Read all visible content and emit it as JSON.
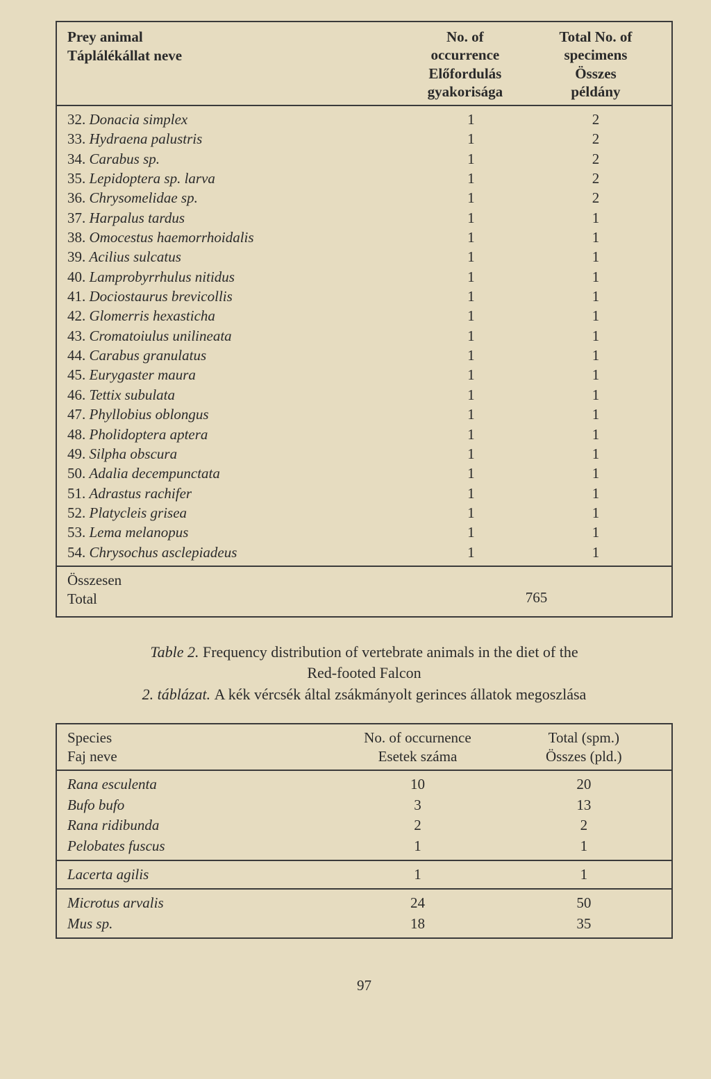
{
  "table1": {
    "header": {
      "left_line1": "Prey animal",
      "left_line2": "Táplálékállat neve",
      "col1_line1": "No. of",
      "col1_line2": "occurrence",
      "col1_line3": "Előfordulás",
      "col1_line4": "gyakorisága",
      "col2_line1": "Total No. of",
      "col2_line2": "specimens",
      "col2_line3": "Összes",
      "col2_line4": "példány"
    },
    "rows": [
      {
        "num": "32.",
        "name": "Donacia simplex",
        "v1": "1",
        "v2": "2"
      },
      {
        "num": "33.",
        "name": "Hydraena palustris",
        "v1": "1",
        "v2": "2"
      },
      {
        "num": "34.",
        "name": "Carabus sp.",
        "v1": "1",
        "v2": "2"
      },
      {
        "num": "35.",
        "name": "Lepidoptera sp. larva",
        "v1": "1",
        "v2": "2"
      },
      {
        "num": "36.",
        "name": "Chrysomelidae sp.",
        "v1": "1",
        "v2": "2"
      },
      {
        "num": "37.",
        "name": "Harpalus tardus",
        "v1": "1",
        "v2": "1"
      },
      {
        "num": "38.",
        "name": "Omocestus haemorrhoidalis",
        "v1": "1",
        "v2": "1"
      },
      {
        "num": "39.",
        "name": "Acilius sulcatus",
        "v1": "1",
        "v2": "1"
      },
      {
        "num": "40.",
        "name": "Lamprobyrrhulus nitidus",
        "v1": "1",
        "v2": "1"
      },
      {
        "num": "41.",
        "name": "Dociostaurus brevicollis",
        "v1": "1",
        "v2": "1"
      },
      {
        "num": "42.",
        "name": "Glomerris hexasticha",
        "v1": "1",
        "v2": "1"
      },
      {
        "num": "43.",
        "name": "Cromatoiulus unilineata",
        "v1": "1",
        "v2": "1"
      },
      {
        "num": "44.",
        "name": "Carabus granulatus",
        "v1": "1",
        "v2": "1"
      },
      {
        "num": "45.",
        "name": "Eurygaster maura",
        "v1": "1",
        "v2": "1"
      },
      {
        "num": "46.",
        "name": "Tettix subulata",
        "v1": "1",
        "v2": "1"
      },
      {
        "num": "47.",
        "name": "Phyllobius oblongus",
        "v1": "1",
        "v2": "1"
      },
      {
        "num": "48.",
        "name": "Pholidoptera aptera",
        "v1": "1",
        "v2": "1"
      },
      {
        "num": "49.",
        "name": "Silpha obscura",
        "v1": "1",
        "v2": "1"
      },
      {
        "num": "50.",
        "name": "Adalia decempunctata",
        "v1": "1",
        "v2": "1"
      },
      {
        "num": "51.",
        "name": "Adrastus rachifer",
        "v1": "1",
        "v2": "1"
      },
      {
        "num": "52.",
        "name": "Platycleis grisea",
        "v1": "1",
        "v2": "1"
      },
      {
        "num": "53.",
        "name": "Lema melanopus",
        "v1": "1",
        "v2": "1"
      },
      {
        "num": "54.",
        "name": "Chrysochus asclepiadeus",
        "v1": "1",
        "v2": "1"
      }
    ],
    "footer": {
      "line1": "Összesen",
      "line2": "Total",
      "total": "765"
    }
  },
  "caption": {
    "prefix": "Table 2. ",
    "title_line1": "Frequency distribution of vertebrate animals in the diet of the",
    "title_line2": "Red-footed Falcon",
    "num": "2. táblázat. ",
    "subtitle": "A kék vércsék által zsákmányolt gerinces állatok megoszlása"
  },
  "table2": {
    "header": {
      "left_line1": "Species",
      "left_line2": "Faj neve",
      "col1_line1": "No. of occurnence",
      "col1_line2": "Esetek száma",
      "col2_line1": "Total (spm.)",
      "col2_line2": "Összes (pld.)"
    },
    "section1": [
      {
        "name": "Rana esculenta",
        "v1": "10",
        "v2": "20"
      },
      {
        "name": "Bufo bufo",
        "v1": "3",
        "v2": "13"
      },
      {
        "name": "Rana ridibunda",
        "v1": "2",
        "v2": "2"
      },
      {
        "name": "Pelobates fuscus",
        "v1": "1",
        "v2": "1"
      }
    ],
    "section2": [
      {
        "name": "Lacerta agilis",
        "v1": "1",
        "v2": "1"
      }
    ],
    "section3": [
      {
        "name": "Microtus arvalis",
        "v1": "24",
        "v2": "50"
      },
      {
        "name": "Mus sp.",
        "v1": "18",
        "v2": "35"
      }
    ]
  },
  "page_number": "97"
}
